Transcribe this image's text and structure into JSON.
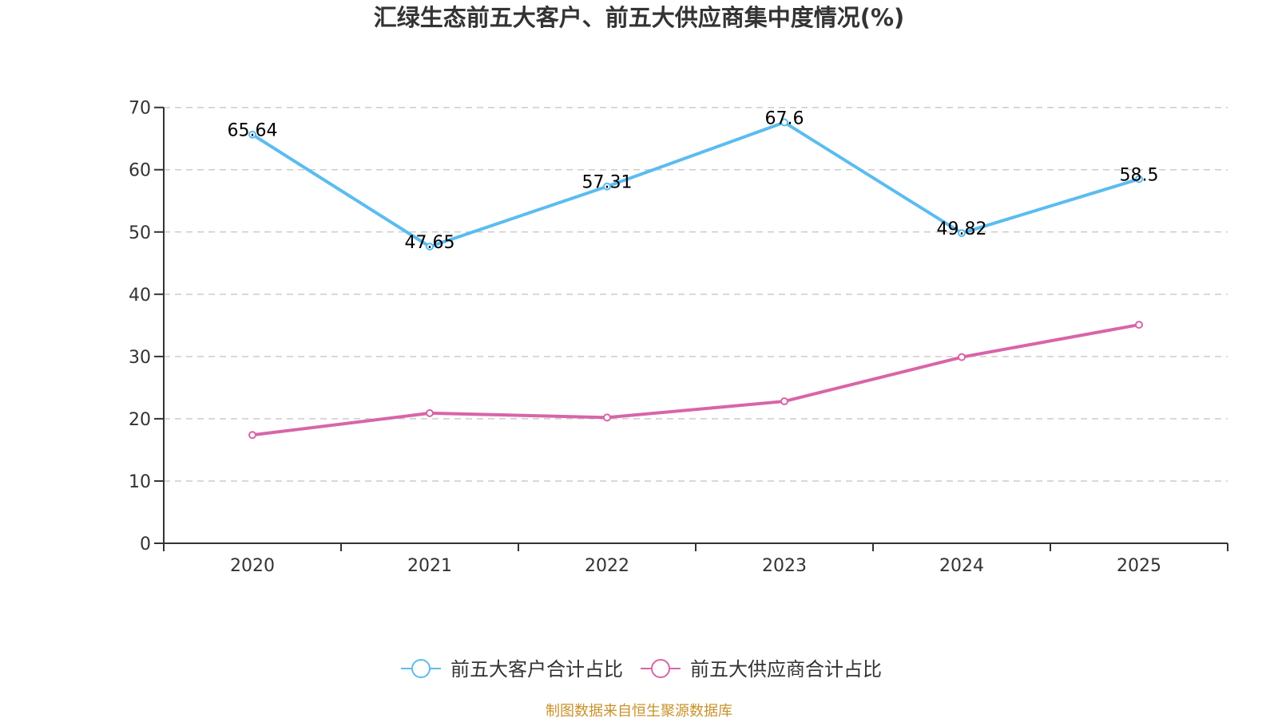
{
  "chart_data": {
    "type": "line",
    "title": "汇绿生态前五大客户、前五大供应商集中度情况(%)",
    "xlabel": "",
    "ylabel": "",
    "categories": [
      "2020",
      "2021",
      "2022",
      "2023",
      "2024",
      "2025"
    ],
    "ylim": [
      0,
      70
    ],
    "yticks": [
      0,
      10,
      20,
      30,
      40,
      50,
      60,
      70
    ],
    "grid": true,
    "legend_position": "bottom",
    "series": [
      {
        "name": "前五大客户合计占比",
        "color": "#5bbcf0",
        "values": [
          65.64,
          47.65,
          57.31,
          67.6,
          49.82,
          58.5
        ],
        "labels": [
          "65.64",
          "47.65",
          "57.31",
          "67.6",
          "49.82",
          "58.5"
        ],
        "show_labels": true
      },
      {
        "name": "前五大供应商合计占比",
        "color": "#d865a8",
        "values": [
          17.4,
          20.9,
          20.2,
          22.8,
          29.9,
          35.1
        ],
        "show_labels": false
      }
    ],
    "source": "制图数据来自恒生聚源数据库"
  }
}
